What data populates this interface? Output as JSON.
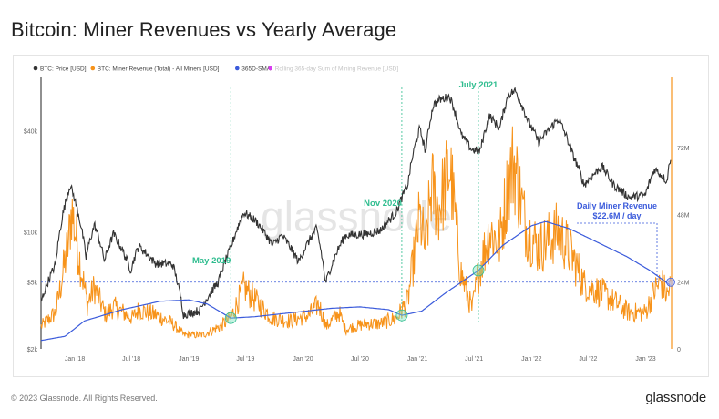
{
  "title": "Bitcoin: Miner Revenues vs Yearly Average",
  "footer": {
    "copyright": "© 2023 Glassnode. All Rights Reserved.",
    "brand": "glassnode"
  },
  "watermark": "glassnode",
  "chart_data": {
    "type": "line",
    "title": "Bitcoin: Miner Revenues vs Yearly Average",
    "x_tick_labels": [
      "Jan '18",
      "Jul '18",
      "Jan '19",
      "Jul '19",
      "Jan '20",
      "Jul '20",
      "Jan '21",
      "Jul '21",
      "Jan '22",
      "Jul '22",
      "Jan '23"
    ],
    "x_range": [
      "2017-09-15",
      "2023-03-25"
    ],
    "y_left": {
      "scale": "log",
      "range": [
        2000,
        80000
      ],
      "tick_labels": [
        "$2k",
        "$5k",
        "$10k",
        "$40k"
      ],
      "tick_values": [
        2000,
        5000,
        10000,
        40000
      ]
    },
    "y_right": {
      "scale": "linear",
      "range": [
        0,
        96
      ],
      "unit": "USD millions",
      "tick_labels": [
        "0",
        "24M",
        "48M",
        "72M"
      ],
      "tick_values": [
        0,
        24,
        48,
        72
      ]
    },
    "legend": [
      {
        "label": "BTC: Price [USD]",
        "color": "#333333"
      },
      {
        "label": "BTC: Miner Revenue (Total) - All Miners [USD]",
        "color": "#f7931a"
      },
      {
        "label": "365D-SMA",
        "color": "#3b5bdb"
      },
      {
        "label": "Rolling 365-day Sum of Mining Revenue [USD]",
        "color": "#d83cf0",
        "muted": true
      }
    ],
    "series": [
      {
        "name": "BTC: Price [USD]",
        "axis": "left",
        "points": [
          [
            "2017-09-15",
            3800
          ],
          [
            "2017-11-01",
            6400
          ],
          [
            "2017-12-17",
            19000
          ],
          [
            "2018-02-06",
            7000
          ],
          [
            "2018-03-05",
            11000
          ],
          [
            "2018-04-06",
            6700
          ],
          [
            "2018-05-05",
            9700
          ],
          [
            "2018-06-29",
            5900
          ],
          [
            "2018-07-24",
            8200
          ],
          [
            "2018-09-15",
            6500
          ],
          [
            "2018-11-10",
            6400
          ],
          [
            "2018-12-15",
            3200
          ],
          [
            "2019-02-05",
            3400
          ],
          [
            "2019-04-05",
            5000
          ],
          [
            "2019-05-15",
            8000
          ],
          [
            "2019-06-26",
            13000
          ],
          [
            "2019-08-05",
            11500
          ],
          [
            "2019-09-25",
            8300
          ],
          [
            "2019-10-26",
            9500
          ],
          [
            "2019-12-18",
            6600
          ],
          [
            "2020-02-13",
            10400
          ],
          [
            "2020-03-13",
            4900
          ],
          [
            "2020-05-15",
            9500
          ],
          [
            "2020-07-25",
            9700
          ],
          [
            "2020-09-05",
            10200
          ],
          [
            "2020-10-25",
            13000
          ],
          [
            "2020-12-01",
            19000
          ],
          [
            "2021-01-08",
            41000
          ],
          [
            "2021-01-27",
            30000
          ],
          [
            "2021-02-21",
            57000
          ],
          [
            "2021-03-12",
            61000
          ],
          [
            "2021-04-14",
            64000
          ],
          [
            "2021-05-20",
            38000
          ],
          [
            "2021-06-22",
            31000
          ],
          [
            "2021-07-20",
            30000
          ],
          [
            "2021-08-20",
            49000
          ],
          [
            "2021-09-21",
            41000
          ],
          [
            "2021-10-20",
            66000
          ],
          [
            "2021-11-10",
            69000
          ],
          [
            "2021-12-20",
            46000
          ],
          [
            "2022-01-24",
            34000
          ],
          [
            "2022-03-28",
            47000
          ],
          [
            "2022-05-12",
            29000
          ],
          [
            "2022-06-18",
            19000
          ],
          [
            "2022-08-14",
            24500
          ],
          [
            "2022-09-20",
            19000
          ],
          [
            "2022-11-09",
            16000
          ],
          [
            "2022-12-31",
            16500
          ],
          [
            "2023-01-30",
            23700
          ],
          [
            "2023-03-10",
            20000
          ],
          [
            "2023-03-22",
            28000
          ]
        ]
      },
      {
        "name": "BTC: Miner Revenue (Total) - All Miners [USD]",
        "axis": "right",
        "unit": "USD millions",
        "points": [
          [
            "2017-09-15",
            8
          ],
          [
            "2017-11-01",
            13
          ],
          [
            "2017-12-12",
            38
          ],
          [
            "2017-12-22",
            50
          ],
          [
            "2018-01-15",
            33
          ],
          [
            "2018-02-10",
            16
          ],
          [
            "2018-03-05",
            22
          ],
          [
            "2018-04-10",
            12
          ],
          [
            "2018-05-05",
            15
          ],
          [
            "2018-07-05",
            11
          ],
          [
            "2018-07-25",
            14
          ],
          [
            "2018-09-20",
            12
          ],
          [
            "2018-11-10",
            9
          ],
          [
            "2018-12-15",
            5
          ],
          [
            "2019-02-15",
            5
          ],
          [
            "2019-04-10",
            8
          ],
          [
            "2019-05-15",
            11
          ],
          [
            "2019-06-26",
            22
          ],
          [
            "2019-08-05",
            17
          ],
          [
            "2019-09-25",
            11
          ],
          [
            "2019-11-20",
            10
          ],
          [
            "2020-01-20",
            12
          ],
          [
            "2020-02-20",
            16
          ],
          [
            "2020-03-15",
            8
          ],
          [
            "2020-04-25",
            13
          ],
          [
            "2020-05-15",
            7
          ],
          [
            "2020-07-20",
            9
          ],
          [
            "2020-09-05",
            9
          ],
          [
            "2020-10-25",
            11
          ],
          [
            "2020-12-01",
            17
          ],
          [
            "2021-01-08",
            47
          ],
          [
            "2021-01-27",
            36
          ],
          [
            "2021-02-15",
            58
          ],
          [
            "2021-03-10",
            50
          ],
          [
            "2021-04-15",
            65
          ],
          [
            "2021-05-20",
            27
          ],
          [
            "2021-06-25",
            14
          ],
          [
            "2021-07-15",
            27
          ],
          [
            "2021-08-20",
            42
          ],
          [
            "2021-09-20",
            38
          ],
          [
            "2021-10-20",
            60
          ],
          [
            "2021-11-05",
            67
          ],
          [
            "2021-12-15",
            43
          ],
          [
            "2022-01-24",
            36
          ],
          [
            "2022-03-28",
            42
          ],
          [
            "2022-05-12",
            33
          ],
          [
            "2022-06-18",
            23
          ],
          [
            "2022-08-15",
            20
          ],
          [
            "2022-09-20",
            17
          ],
          [
            "2022-11-09",
            13
          ],
          [
            "2022-12-31",
            13
          ],
          [
            "2023-01-30",
            21
          ],
          [
            "2023-02-20",
            24
          ],
          [
            "2023-03-10",
            19
          ],
          [
            "2023-03-22",
            22.6
          ]
        ]
      },
      {
        "name": "365D-SMA",
        "axis": "right",
        "unit": "USD millions",
        "points": [
          [
            "2017-09-15",
            3
          ],
          [
            "2017-12-01",
            4.5
          ],
          [
            "2018-02-01",
            10
          ],
          [
            "2018-06-01",
            14
          ],
          [
            "2018-10-01",
            17
          ],
          [
            "2019-01-01",
            17.5
          ],
          [
            "2019-03-01",
            16
          ],
          [
            "2019-05-15",
            11
          ],
          [
            "2019-08-01",
            11.5
          ],
          [
            "2019-12-01",
            13
          ],
          [
            "2020-04-01",
            14.5
          ],
          [
            "2020-07-01",
            15
          ],
          [
            "2020-10-01",
            14
          ],
          [
            "2020-11-12",
            12
          ],
          [
            "2021-01-15",
            13.5
          ],
          [
            "2021-04-01",
            20
          ],
          [
            "2021-07-15",
            28
          ],
          [
            "2021-10-01",
            37
          ],
          [
            "2022-01-01",
            44
          ],
          [
            "2022-02-15",
            45.5
          ],
          [
            "2022-05-01",
            43
          ],
          [
            "2022-08-01",
            38
          ],
          [
            "2022-11-01",
            33
          ],
          [
            "2023-01-15",
            28
          ],
          [
            "2023-03-22",
            22.6
          ]
        ]
      }
    ],
    "annotations": [
      {
        "label": "May 2019",
        "x": "2019-05-15",
        "color": "#2fbd8f"
      },
      {
        "label": "Nov 2020",
        "x": "2020-11-12",
        "color": "#2fbd8f"
      },
      {
        "label": "July 2021",
        "x": "2021-07-15",
        "color": "#2fbd8f"
      },
      {
        "label_lines": [
          "Daily Miner Revenue",
          "$22.6M / day"
        ],
        "x": "2023-03-22",
        "value": 22.6,
        "color": "#3b5bdb"
      }
    ],
    "reference_line": {
      "type": "horizontal",
      "axis": "left",
      "value": 5000,
      "style": "dotted",
      "color": "#3b5bdb"
    }
  }
}
